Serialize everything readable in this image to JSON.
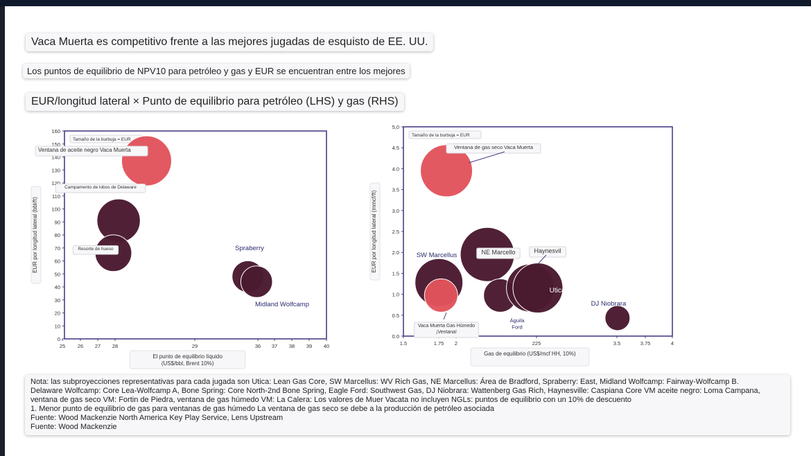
{
  "headline": "Vaca Muerta es competitivo frente a las mejores jugadas de esquisto de EE. UU.",
  "subheadline": "Los puntos de equilibrio de NPV10 para petróleo y gas y EUR se encuentran entre los mejores",
  "chart_title": "EUR/longitud lateral × Punto de equilibrio para petróleo (LHS) y gas (RHS)",
  "colors": {
    "dark_bubble": "#4a1a30",
    "red_bubble": "#e2545c",
    "axis": "#4b3f85"
  },
  "chart_data": [
    {
      "type": "scatter",
      "bubble_size_note": "Tamaño de la burbuja = EUR",
      "xlabel": "El punto de equilibrio líquido (US$/bbl, Brent 10%)",
      "ylabel": "EUR por longitud lateral (bbl/ft)",
      "xlim": [
        25,
        40
      ],
      "ylim": [
        0,
        160
      ],
      "xticks": [
        "25",
        "26",
        "27",
        "28",
        "29",
        "36",
        "37",
        "38",
        "39",
        "40"
      ],
      "yticks": [
        "0",
        "10",
        "20",
        "30",
        "40",
        "50",
        "60",
        "70",
        "80",
        "90",
        "100",
        "110",
        "120",
        "130",
        "140",
        "150",
        "160"
      ],
      "points": [
        {
          "label": "Ventana de aceite negro Vaca Muerta",
          "x": 29.7,
          "y": 137,
          "size": 3.0,
          "color": "red"
        },
        {
          "label": "Campamento de lobos de Delaware",
          "x": 28.1,
          "y": 91,
          "size": 2.6,
          "color": "dark"
        },
        {
          "label": "Resorte de hueso",
          "x": 27.8,
          "y": 66,
          "size": 2.2,
          "color": "dark"
        },
        {
          "label": "Spraberry",
          "x": 35.5,
          "y": 48,
          "size": 1.9,
          "color": "dark"
        },
        {
          "label": "Midland Wolfcamp",
          "x": 36.0,
          "y": 44,
          "size": 1.9,
          "color": "dark"
        }
      ]
    },
    {
      "type": "scatter",
      "bubble_size_note": "Tamaño de la burbuja = EUR",
      "xlabel": "Gas de equilibrio (US$/mcf HH, 10%)",
      "ylabel": "EUR por longitud lateral (mmcf/ft)",
      "xlim": [
        1.5,
        4
      ],
      "ylim": [
        0,
        5
      ],
      "xticks": [
        "1.5",
        "1.75",
        "2",
        "225",
        "3.5",
        "3.75",
        "4"
      ],
      "yticks": [
        "0.0",
        "0.5",
        "1.0",
        "1.5",
        "2.0",
        "2.5",
        "3.0",
        "3.5",
        "4.0",
        "4.5",
        "5,0"
      ],
      "points": [
        {
          "label": "Ventana de gas seco Vaca Muerta",
          "x": 1.9,
          "y": 3.95,
          "size": 2.5,
          "color": "red"
        },
        {
          "label": "SW Marcellus",
          "x": 1.83,
          "y": 1.28,
          "size": 2.3,
          "color": "dark"
        },
        {
          "label": "Vaca Muerta Gas Húmedo ¡Ventana!",
          "x": 1.85,
          "y": 0.97,
          "size": 1.6,
          "color": "red"
        },
        {
          "label": "NE Marcello",
          "x": 2.28,
          "y": 1.95,
          "size": 2.6,
          "color": "dark"
        },
        {
          "label": "Águila Ford",
          "x": 2.4,
          "y": 0.97,
          "size": 1.6,
          "color": "dark"
        },
        {
          "label": "Haynesvil",
          "x": 2.68,
          "y": 1.15,
          "size": 2.3,
          "color": "dark"
        },
        {
          "label": "Utica",
          "x": 2.75,
          "y": 1.15,
          "size": 2.4,
          "color": "dark"
        },
        {
          "label": "DJ Niobrara",
          "x": 3.49,
          "y": 0.43,
          "size": 1.2,
          "color": "dark"
        }
      ]
    }
  ],
  "notes": [
    "Nota: las subproyecciones representativas para cada jugada son Utica: Lean Gas Core, SW Marcellus: WV Rich Gas, NE Marcellus: Área de Bradford, Spraberry: East, Midland Wolfcamp: Fairway-Wolfcamp B.",
    "Delaware Wolfcamp: Core Lea-Wolfcamp A, Bone Spring: Core North-2nd Bone Spring, Eagle Ford: Southwest Gas, DJ Niobrara: Wattenberg Gas Rich, Haynesville: Caspiana Core VM aceite negro: Loma Campana, ventana de gas seco VM: Fortin de Piedra, ventana de gas húmedo VM: La Calera: Los valores de Muer Vacata no incluyen NGLs: puntos de equilibrio con un 10% de descuento",
    "1. Menor punto de equilibrio de gas para ventanas de gas húmedo La ventana de gas seco se debe a la producción de petróleo asociada",
    "Fuente: Wood Mackenzie North America Key Play Service, Lens Upstream",
    "Fuente: Wood Mackenzie"
  ]
}
